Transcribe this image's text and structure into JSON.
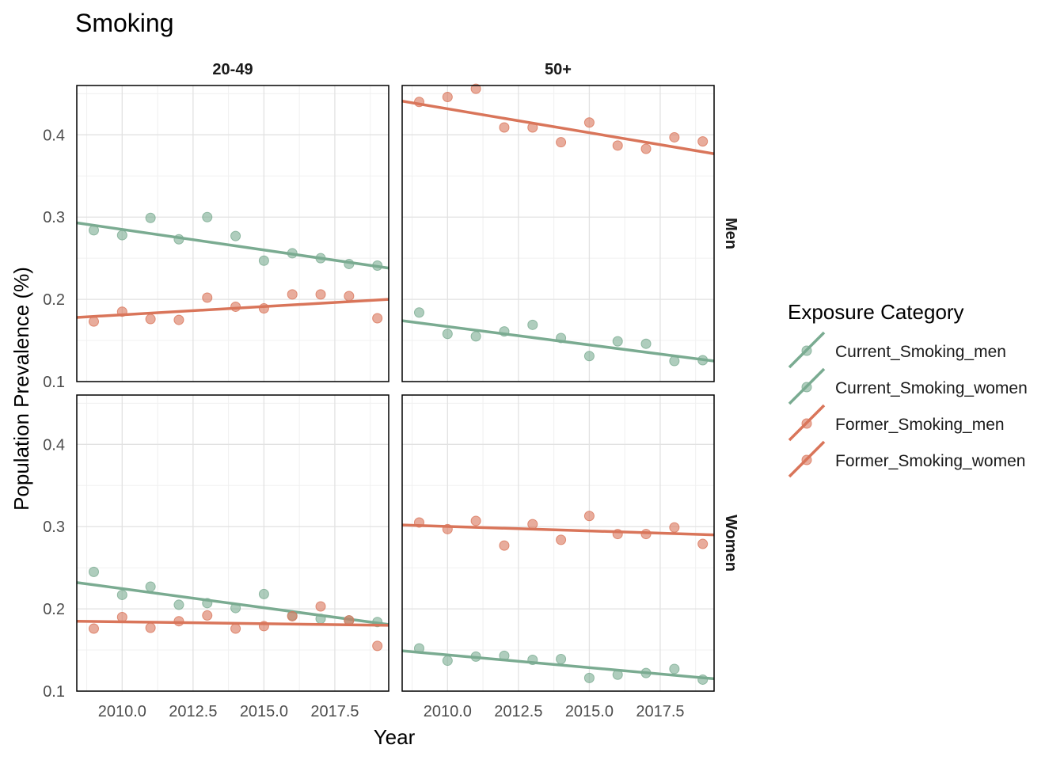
{
  "chart_data": {
    "type": "scatter",
    "title": "Smoking",
    "xlabel": "Year",
    "ylabel": "Population Prevalence (%)",
    "facet_cols": [
      "20-49",
      "50+"
    ],
    "facet_rows": [
      "Men",
      "Women"
    ],
    "xlim": [
      2008.4,
      2019.4
    ],
    "ylim": [
      0.1,
      0.46
    ],
    "x_ticks": [
      2010.0,
      2012.5,
      2015.0,
      2017.5
    ],
    "x_tick_labels": [
      "2010.0",
      "2012.5",
      "2015.0",
      "2017.5"
    ],
    "y_ticks": [
      0.1,
      0.2,
      0.3,
      0.4
    ],
    "y_tick_labels": [
      "0.1",
      "0.2",
      "0.3",
      "0.4"
    ],
    "grid": true,
    "legend": {
      "title": "Exposure Category",
      "placement": "right",
      "entries": [
        {
          "label": "Current_Smoking_men",
          "color": "#7aab91"
        },
        {
          "label": "Current_Smoking_women",
          "color": "#7aab91"
        },
        {
          "label": "Former_Smoking_men",
          "color": "#d9755a"
        },
        {
          "label": "Former_Smoking_women",
          "color": "#d9755a"
        }
      ]
    },
    "years": [
      2009,
      2010,
      2011,
      2012,
      2013,
      2014,
      2015,
      2016,
      2017,
      2018,
      2019
    ],
    "panels": [
      {
        "col": "20-49",
        "row": "Men",
        "series": [
          {
            "name": "Current_Smoking_men",
            "color": "#7aab91",
            "values": [
              0.284,
              0.278,
              0.299,
              0.273,
              0.3,
              0.277,
              0.247,
              0.256,
              0.25,
              0.243,
              0.241
            ],
            "trend": [
              0.293,
              0.238
            ]
          },
          {
            "name": "Former_Smoking_men",
            "color": "#d9755a",
            "values": [
              0.173,
              0.185,
              0.176,
              0.175,
              0.202,
              0.191,
              0.189,
              0.206,
              0.206,
              0.204,
              0.177
            ],
            "trend": [
              0.178,
              0.2
            ]
          }
        ]
      },
      {
        "col": "50+",
        "row": "Men",
        "series": [
          {
            "name": "Current_Smoking_men",
            "color": "#7aab91",
            "values": [
              0.184,
              0.158,
              0.155,
              0.161,
              0.169,
              0.153,
              0.131,
              0.149,
              0.146,
              0.125,
              0.126
            ],
            "trend": [
              0.174,
              0.125
            ]
          },
          {
            "name": "Former_Smoking_men",
            "color": "#d9755a",
            "values": [
              0.44,
              0.446,
              0.456,
              0.409,
              0.409,
              0.391,
              0.415,
              0.387,
              0.383,
              0.397,
              0.392
            ],
            "trend": [
              0.441,
              0.377
            ]
          }
        ]
      },
      {
        "col": "20-49",
        "row": "Women",
        "series": [
          {
            "name": "Current_Smoking_women",
            "color": "#7aab91",
            "values": [
              0.245,
              0.217,
              0.227,
              0.205,
              0.207,
              0.201,
              0.218,
              0.192,
              0.188,
              0.186,
              0.184
            ],
            "trend": [
              0.232,
              0.181
            ]
          },
          {
            "name": "Former_Smoking_women",
            "color": "#d9755a",
            "values": [
              0.176,
              0.19,
              0.177,
              0.185,
              0.192,
              0.176,
              0.179,
              0.191,
              0.203,
              0.186,
              0.155
            ],
            "trend": [
              0.185,
              0.18
            ]
          }
        ]
      },
      {
        "col": "50+",
        "row": "Women",
        "series": [
          {
            "name": "Current_Smoking_women",
            "color": "#7aab91",
            "values": [
              0.152,
              0.137,
              0.142,
              0.143,
              0.138,
              0.139,
              0.116,
              0.12,
              0.122,
              0.127,
              0.114
            ],
            "trend": [
              0.149,
              0.115
            ]
          },
          {
            "name": "Former_Smoking_women",
            "color": "#d9755a",
            "values": [
              0.305,
              0.297,
              0.307,
              0.277,
              0.303,
              0.284,
              0.313,
              0.291,
              0.291,
              0.299,
              0.279
            ],
            "trend": [
              0.302,
              0.29
            ]
          }
        ]
      }
    ]
  }
}
